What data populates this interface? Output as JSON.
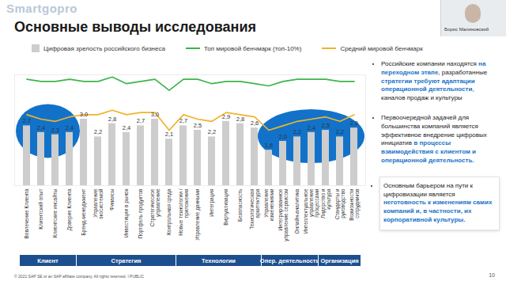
{
  "slide": {
    "logo": "Smartgopro",
    "title": "Основные выводы исследования",
    "speaker": "Борис Малиновский",
    "bullets": [
      [
        {
          "text": "Российские компании находятся "
        },
        {
          "text": "на переходном этапе",
          "strong": true
        },
        {
          "text": ", разработанные "
        },
        {
          "text": "стратегии требуют адаптации операционной деятельности",
          "strong": true
        },
        {
          "text": ", каналов продаж и культуры"
        }
      ],
      [
        {
          "text": "Первоочередной задачей для большинства компаний является эффективное внедрение цифровых инициатив "
        },
        {
          "text": "в процессы взаимодействия с клиентом и операционной деятельность.",
          "strong": true
        }
      ],
      [
        {
          "text": "Основным барьером на пути к цифровизации является "
        },
        {
          "text": "неготовность к изменениям самих компаний и, в частности, их корпоративной культуры.",
          "strong": true
        }
      ]
    ],
    "footer": "© 2021 SAP SE or an SAP affiliate company. All rights reserved. ǀ PUBLIC",
    "page_number": 10
  },
  "chart_data": {
    "type": "bar",
    "categories": [
      "Вовлечение Клиента",
      "Клиентский опыт",
      "Клиентские инсайты",
      "Доверие Клиента",
      "Бренд-менеджмент",
      "Управление экосистемой",
      "Финансы",
      "Инвестиции в рынок",
      "Портфель продуктов",
      "Стратегическое управление",
      "Контрольная среда",
      "Новые технологии / приложения",
      "Управление данными",
      "Интеграция",
      "Виртуализация",
      "Безопасность",
      "Технологическая архитектура",
      "Управление изменениями",
      "Интегрированное управление сервисом",
      "Онлайн-аналитика",
      "Интеллектуальное управление процессами",
      "Лидерство и культура",
      "Стандарты и руководство",
      "Возможности сотрудников"
    ],
    "groups": [
      "Клиент",
      "Клиент",
      "Клиент",
      "Клиент",
      "Стратегия",
      "Стратегия",
      "Стратегия",
      "Стратегия",
      "Стратегия",
      "Стратегия",
      "Стратегия",
      "Технологии",
      "Технологии",
      "Технологии",
      "Технологии",
      "Технологии",
      "Технологии",
      "Опер. деятельность",
      "Опер. деятельность",
      "Опер. деятельность",
      "Опер. деятельность",
      "Организация",
      "Организация",
      "Организация"
    ],
    "series": [
      {
        "name": "Цифровая зрелость российского бизнеса",
        "type": "bar",
        "color": "#cdcdcd",
        "values": [
          2.7,
          2.4,
          2.3,
          2.4,
          3.0,
          2.2,
          2.8,
          2.4,
          2.7,
          3.0,
          2.1,
          2.7,
          2.5,
          2.2,
          2.9,
          2.8,
          2.6,
          1.6,
          2.0,
          2.2,
          2.4,
          2.5,
          2.2,
          2.6
        ],
        "value_labels": [
          "2,7",
          "2,4",
          "2,3",
          "2,4",
          "3,0",
          "2,2",
          "2,8",
          "2,4",
          "2,7",
          "3,0",
          "2,1",
          "2,7",
          "2,5",
          "2,2",
          "2,9",
          "2,8",
          "2,6",
          "1,6",
          "2,0",
          "2,2",
          "2,4",
          "2,5",
          "2,2",
          "2,6"
        ]
      },
      {
        "name": "Топ мировой бенчмарк (топ-10%)",
        "type": "line",
        "color": "#3cb54a",
        "values": [
          4.8,
          4.7,
          4.7,
          4.8,
          4.7,
          4.7,
          4.9,
          4.6,
          4.7,
          4.8,
          4.3,
          4.8,
          4.8,
          4.6,
          4.7,
          4.7,
          4.6,
          4.5,
          4.7,
          4.8,
          4.8,
          4.8,
          4.7,
          4.7
        ]
      },
      {
        "name": "Средний мировой бенчмарк",
        "type": "line",
        "color": "#f0b429",
        "values": [
          3.2,
          3.0,
          2.9,
          3.1,
          3.2,
          3.2,
          3.4,
          3.2,
          3.3,
          3.3,
          2.5,
          3.2,
          3.0,
          2.9,
          3.3,
          3.2,
          3.1,
          2.5,
          2.7,
          2.9,
          3.0,
          3.1,
          2.9,
          3.2
        ]
      }
    ],
    "ylim": [
      0,
      5
    ],
    "tick_labels": "x",
    "data_labels": true,
    "legend": "top"
  }
}
